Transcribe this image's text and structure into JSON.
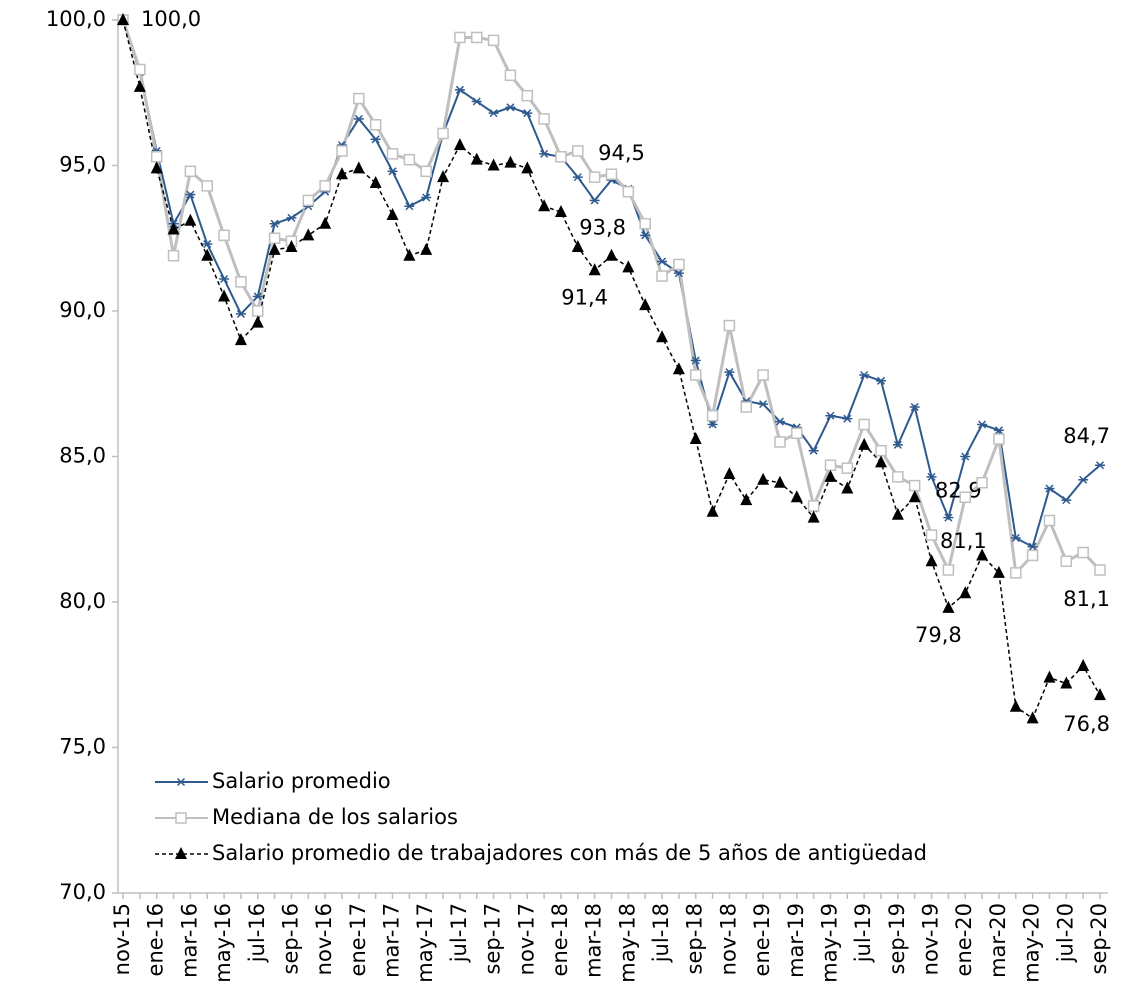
{
  "chart_data": {
    "type": "line",
    "categories": [
      "nov-15",
      null,
      "ene-16",
      null,
      "mar-16",
      null,
      "may-16",
      null,
      "jul-16",
      null,
      "sep-16",
      null,
      "nov-16",
      null,
      "ene-17",
      null,
      "mar-17",
      null,
      "may-17",
      null,
      "jul-17",
      null,
      "sep-17",
      null,
      "nov-17",
      null,
      "ene-18",
      null,
      "mar-18",
      null,
      "may-18",
      null,
      "jul-18",
      null,
      "sep-18",
      null,
      "nov-18",
      null,
      "ene-19",
      null,
      "mar-19",
      null,
      "may-19",
      null,
      "jul-19",
      null,
      "sep-19",
      null,
      "nov-19",
      null,
      "ene-20",
      null,
      "mar-20",
      null,
      "may-20",
      null,
      "jul-20",
      null,
      "sep-20"
    ],
    "series": [
      {
        "name": "Salario promedio",
        "color": "#2f5a8f",
        "marker": "star",
        "dash": false,
        "values": [
          100,
          98.2,
          95.5,
          93.0,
          94.0,
          92.3,
          91.1,
          89.9,
          90.5,
          93.0,
          93.2,
          93.6,
          94.1,
          95.7,
          96.6,
          95.9,
          94.8,
          93.6,
          93.9,
          96.1,
          97.6,
          97.2,
          96.8,
          97.0,
          96.8,
          95.4,
          95.3,
          94.6,
          93.8,
          94.5,
          94.2,
          92.6,
          91.7,
          91.3,
          88.3,
          86.1,
          87.9,
          86.9,
          86.8,
          86.2,
          86.0,
          85.2,
          86.4,
          86.3,
          87.8,
          87.6,
          85.4,
          86.7,
          84.3,
          82.9,
          85.0,
          86.1,
          85.9,
          82.2,
          81.9,
          83.9,
          83.5,
          84.2,
          84.7
        ],
        "value_labels": [
          "100,0",
          null,
          null,
          null,
          null,
          null,
          null,
          null,
          null,
          null,
          null,
          null,
          null,
          null,
          null,
          null,
          null,
          null,
          null,
          null,
          null,
          null,
          null,
          null,
          null,
          null,
          null,
          null,
          "93,8",
          "94,5",
          null,
          null,
          null,
          null,
          null,
          null,
          null,
          null,
          null,
          null,
          null,
          null,
          null,
          null,
          null,
          null,
          null,
          null,
          null,
          "82,9",
          null,
          null,
          null,
          null,
          null,
          null,
          null,
          null,
          "84,7"
        ]
      },
      {
        "name": "Mediana de los salarios",
        "color": "#bfbfbf",
        "marker": "square",
        "dash": false,
        "values": [
          100,
          98.3,
          95.3,
          91.9,
          94.8,
          94.3,
          92.6,
          91.0,
          90.0,
          92.5,
          92.4,
          93.8,
          94.3,
          95.5,
          97.3,
          96.4,
          95.4,
          95.2,
          94.8,
          96.1,
          99.4,
          99.4,
          99.3,
          98.1,
          97.4,
          96.6,
          95.3,
          95.5,
          94.6,
          94.7,
          94.1,
          93.0,
          91.2,
          91.6,
          87.8,
          86.4,
          89.5,
          86.7,
          87.8,
          85.5,
          85.8,
          83.3,
          84.7,
          84.6,
          86.1,
          85.2,
          84.3,
          84.0,
          82.3,
          81.1,
          83.6,
          84.1,
          85.6,
          81.0,
          81.6,
          82.8,
          81.4,
          81.7,
          81.1
        ],
        "value_labels": [
          null,
          null,
          null,
          null,
          null,
          null,
          null,
          null,
          null,
          null,
          null,
          null,
          null,
          null,
          null,
          null,
          null,
          null,
          null,
          null,
          null,
          null,
          null,
          null,
          null,
          null,
          null,
          null,
          null,
          null,
          null,
          null,
          null,
          null,
          null,
          null,
          null,
          null,
          null,
          null,
          null,
          null,
          null,
          null,
          null,
          null,
          null,
          null,
          null,
          "81,1",
          null,
          null,
          null,
          null,
          null,
          null,
          null,
          null,
          "81,1"
        ]
      },
      {
        "name": "Salario promedio de trabajadores con más de 5 años de antigüedad",
        "color": "#000000",
        "marker": "triangle",
        "dash": true,
        "values": [
          100,
          97.7,
          94.9,
          92.8,
          93.1,
          91.9,
          90.5,
          89.0,
          89.6,
          92.1,
          92.2,
          92.6,
          93.0,
          94.7,
          94.9,
          94.4,
          93.3,
          91.9,
          92.1,
          94.6,
          95.7,
          95.2,
          95.0,
          95.1,
          94.9,
          93.6,
          93.4,
          92.2,
          91.4,
          91.9,
          91.5,
          90.2,
          89.1,
          88.0,
          85.6,
          83.1,
          84.4,
          83.5,
          84.2,
          84.1,
          83.6,
          82.9,
          84.3,
          83.9,
          85.4,
          84.8,
          83.0,
          83.6,
          81.4,
          79.8,
          80.3,
          81.6,
          81.0,
          76.4,
          76.0,
          77.4,
          77.2,
          77.8,
          76.8
        ],
        "value_labels": [
          null,
          null,
          null,
          null,
          null,
          null,
          null,
          null,
          null,
          null,
          null,
          null,
          null,
          null,
          null,
          null,
          null,
          null,
          null,
          null,
          null,
          null,
          null,
          null,
          null,
          null,
          null,
          null,
          "91,4",
          null,
          null,
          null,
          null,
          null,
          null,
          null,
          null,
          null,
          null,
          null,
          null,
          null,
          null,
          null,
          null,
          null,
          null,
          null,
          null,
          "79,8",
          null,
          null,
          null,
          null,
          null,
          null,
          null,
          null,
          "76,8"
        ]
      }
    ],
    "ylim": [
      70,
      100
    ],
    "yticks": [
      {
        "value": 70,
        "label": "70,0"
      },
      {
        "value": 75,
        "label": "75,0"
      },
      {
        "value": 80,
        "label": "80,0"
      },
      {
        "value": 85,
        "label": "85,0"
      },
      {
        "value": 90,
        "label": "90,0"
      },
      {
        "value": 95,
        "label": "95,0"
      },
      {
        "value": 100,
        "label": "100,0"
      }
    ],
    "grid": false,
    "legend": "lower-left"
  }
}
